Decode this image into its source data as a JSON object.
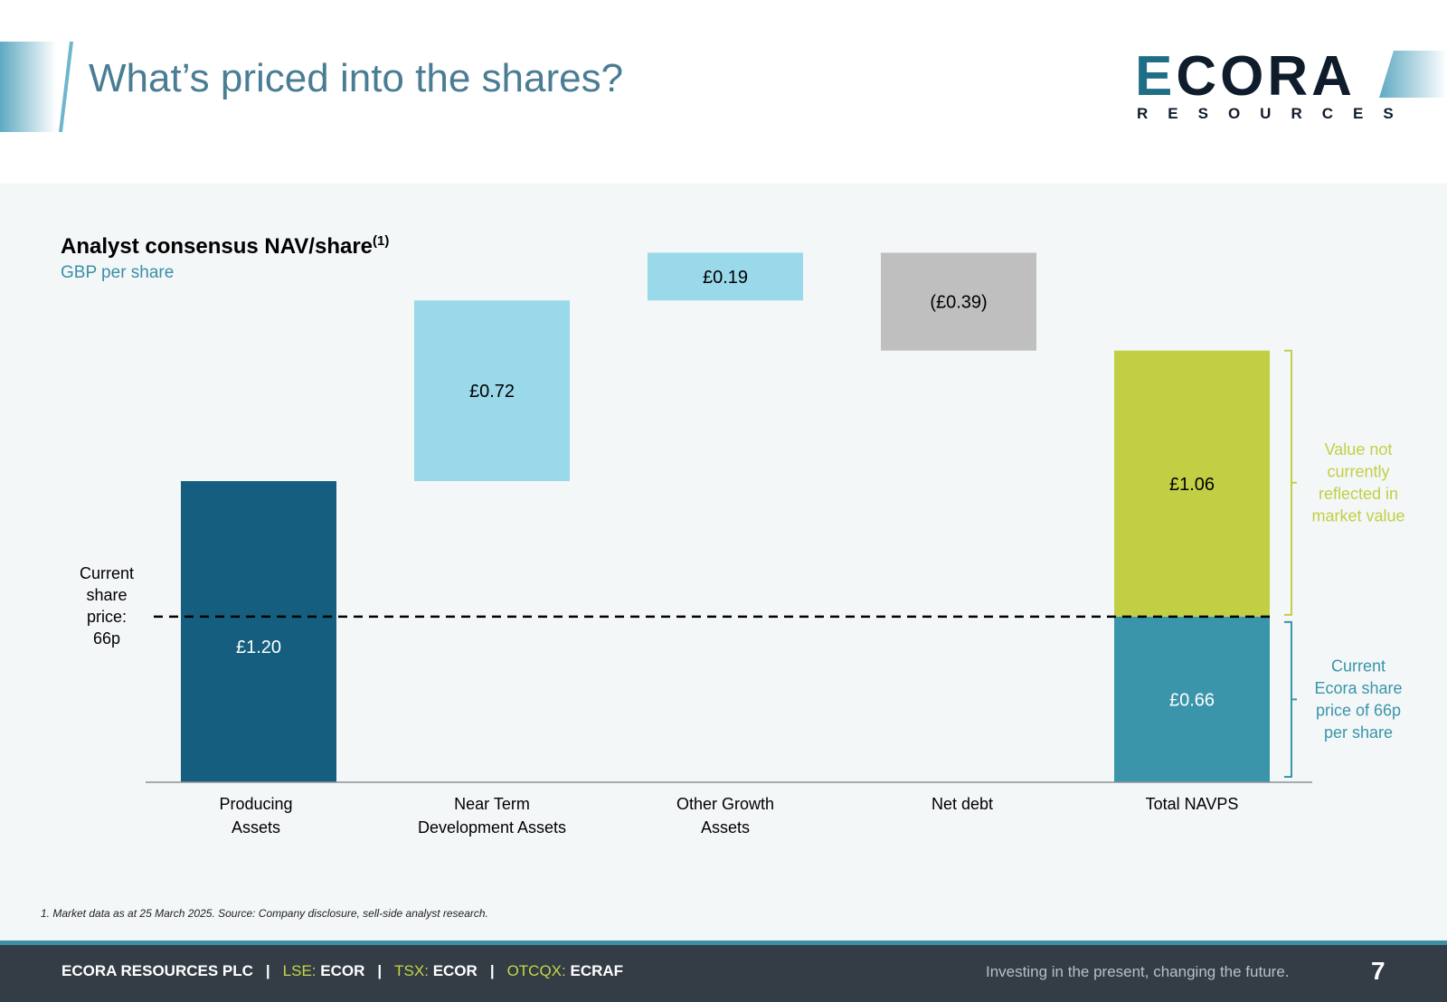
{
  "slide": {
    "title": "What’s priced into the shares?",
    "page_number": "7"
  },
  "logo": {
    "word_first": "E",
    "word_rest": "CORA",
    "sub": "RESOURCES"
  },
  "chart_data": {
    "type": "waterfall",
    "title": "Analyst consensus NAV/share",
    "title_superscript": "(1)",
    "subtitle": "GBP per share",
    "categories": [
      "Producing Assets",
      "Near Term Development Assets",
      "Other Growth Assets",
      "Net debt",
      "Total NAVPS"
    ],
    "category_lines": [
      [
        "Producing",
        "Assets"
      ],
      [
        "Near Term",
        "Development Assets"
      ],
      [
        "Other Growth",
        "Assets"
      ],
      [
        "Net debt"
      ],
      [
        "Total NAVPS"
      ]
    ],
    "bars": [
      {
        "category": "Producing Assets",
        "start": 0,
        "end": 1.2,
        "value": 1.2,
        "label": "£1.20",
        "color": "#165e80",
        "label_color": "#ffffff"
      },
      {
        "category": "Near Term Development Assets",
        "start": 1.2,
        "end": 1.92,
        "value": 0.72,
        "label": "£0.72",
        "color": "#99d9ea",
        "label_color": "#000000"
      },
      {
        "category": "Other Growth Assets",
        "start": 1.92,
        "end": 2.11,
        "value": 0.19,
        "label": "£0.19",
        "color": "#99d9ea",
        "label_color": "#000000"
      },
      {
        "category": "Net debt",
        "start": 2.11,
        "end": 1.72,
        "value": -0.39,
        "label": "(£0.39)",
        "color": "#bfbfbf",
        "label_color": "#000000"
      }
    ],
    "total_stack": {
      "category": "Total NAVPS",
      "segments": [
        {
          "start": 0,
          "end": 0.66,
          "value": 0.66,
          "label": "£0.66",
          "color": "#3a95ab",
          "label_color": "#ffffff"
        },
        {
          "start": 0.66,
          "end": 1.72,
          "value": 1.06,
          "label": "£1.06",
          "color": "#c2cf44",
          "label_color": "#000000"
        }
      ]
    },
    "reference_line": {
      "value": 0.66,
      "style": "dashed",
      "label_lines": [
        "Current",
        "share",
        "price:",
        "66p"
      ]
    },
    "annotations": [
      {
        "lines": [
          "Value not",
          "currently",
          "reflected in",
          "market value"
        ],
        "from": 0.66,
        "to": 1.72,
        "color": "#c2cf44"
      },
      {
        "lines": [
          "Current",
          "Ecora share",
          "price of 66p",
          "per share"
        ],
        "from": 0,
        "to": 0.66,
        "color": "#3a95ab"
      }
    ],
    "ylim": [
      0,
      2.11
    ],
    "grid": false,
    "legend": "none"
  },
  "footnote": "1. Market data as at 25 March 2025. Source: Company disclosure, sell-side analyst research.",
  "footer": {
    "company": "ECORA RESOURCES PLC",
    "separator": "|",
    "lse_label": "LSE:",
    "lse_ticker": "ECOR",
    "tsx_label": "TSX:",
    "tsx_ticker": "ECOR",
    "otc_label": "OTCQX:",
    "otc_ticker": "ECRAF",
    "tagline": "Investing in the present, changing the future."
  }
}
